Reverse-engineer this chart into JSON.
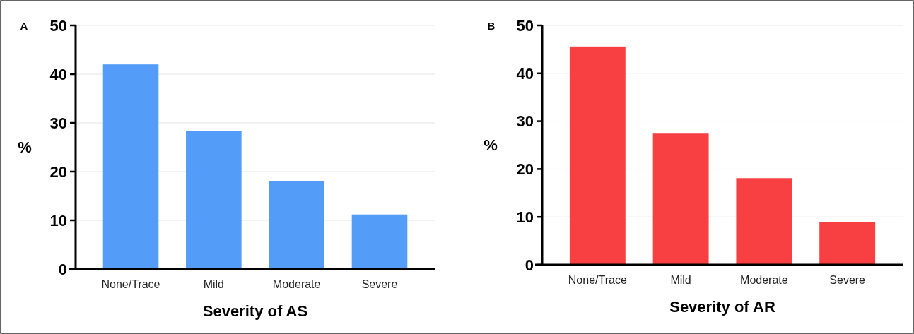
{
  "chart_data": [
    {
      "type": "bar",
      "title": "A",
      "ylabel": "%",
      "xlabel": "Severity of  AS",
      "categories": [
        "None/Trace",
        "Mild",
        "Moderate",
        "Severe"
      ],
      "values": [
        42.0,
        28.4,
        18.1,
        11.2
      ],
      "color": "#539cf8",
      "ylim": [
        0,
        50
      ],
      "yticks": [
        0,
        10,
        20,
        30,
        40,
        50
      ],
      "grid": "y"
    },
    {
      "type": "bar",
      "title": "B",
      "ylabel": "%",
      "xlabel": "Severity of  AR",
      "categories": [
        "None/Trace",
        "Mild",
        "Moderate",
        "Severe"
      ],
      "values": [
        45.6,
        27.4,
        18.1,
        9.0
      ],
      "color": "#f83f42",
      "ylim": [
        0,
        50
      ],
      "yticks": [
        0,
        10,
        20,
        30,
        40,
        50
      ],
      "grid": "y"
    }
  ]
}
